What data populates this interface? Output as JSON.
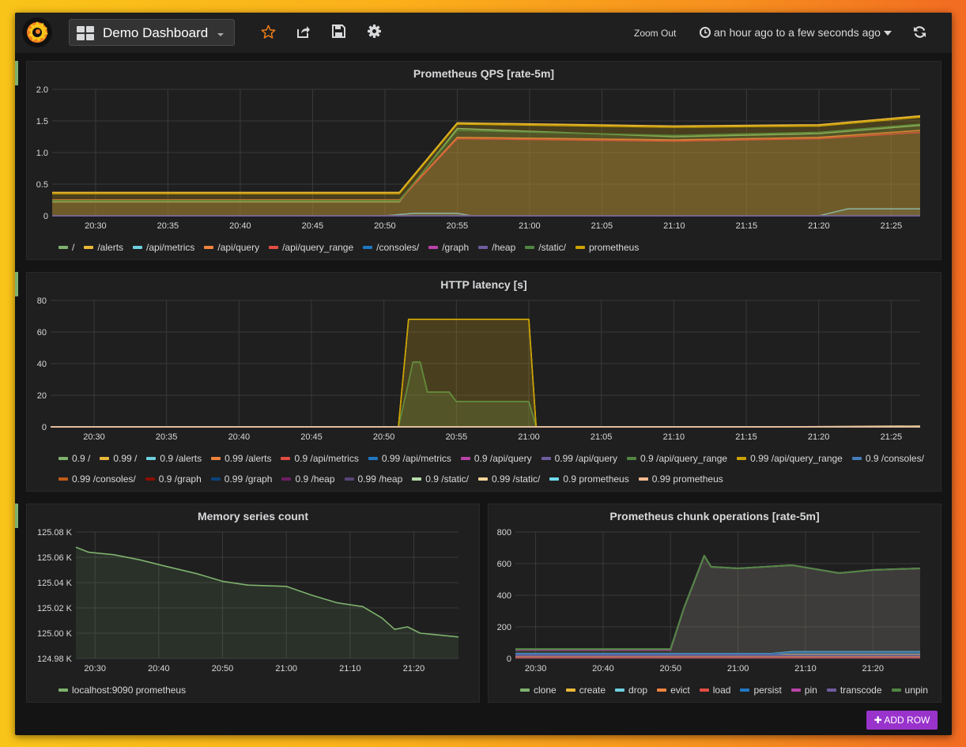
{
  "topbar": {
    "dashboard_title": "Demo Dashboard",
    "zoom_out": "Zoom Out",
    "time_range": "an hour ago to a few seconds ago",
    "add_row": "ADD ROW",
    "icons": [
      "grafana-logo-icon",
      "dashboard-grid-icon",
      "star-icon",
      "share-icon",
      "save-icon",
      "gear-icon",
      "clock-icon",
      "refresh-icon",
      "plus-icon"
    ]
  },
  "colors": {
    "accent_green": "#7eb26d",
    "add_row": "#9933cc"
  },
  "chart_data": [
    {
      "type": "area",
      "title": "Prometheus QPS [rate-5m]",
      "x_ticks": [
        "20:30",
        "20:35",
        "20:40",
        "20:45",
        "20:50",
        "20:55",
        "21:00",
        "21:05",
        "21:10",
        "21:15",
        "21:20",
        "21:25"
      ],
      "x_range": [
        "20:27",
        "21:27"
      ],
      "y_ticks": [
        "0",
        "0.5",
        "1.0",
        "1.5",
        "2.0"
      ],
      "ylim": [
        0,
        2.0
      ],
      "grid": true,
      "legend": "bottom",
      "series": [
        {
          "name": "/",
          "color": "#7eb26d",
          "x": [
            "20:27",
            "20:51",
            "20:55",
            "21:10",
            "21:20",
            "21:27"
          ],
          "values": [
            0.22,
            0.22,
            1.38,
            1.25,
            1.3,
            1.43
          ]
        },
        {
          "name": "/alerts",
          "color": "#eab839",
          "x": [
            "20:27",
            "20:51",
            "20:55",
            "21:10",
            "21:20",
            "21:27"
          ],
          "values": [
            0.37,
            0.37,
            1.47,
            1.42,
            1.44,
            1.58
          ]
        },
        {
          "name": "/api/metrics",
          "color": "#6ed0e0",
          "x": [
            "20:27",
            "20:50",
            "20:52",
            "20:55",
            "20:56",
            "21:20",
            "21:22",
            "21:27"
          ],
          "values": [
            0.0,
            0.0,
            0.04,
            0.04,
            0.0,
            0.0,
            0.11,
            0.11
          ]
        },
        {
          "name": "/api/query",
          "color": "#ef843c",
          "x": [
            "20:27",
            "20:51",
            "20:55",
            "21:10",
            "21:20",
            "21:27"
          ],
          "values": [
            0.25,
            0.25,
            1.24,
            1.2,
            1.24,
            1.35
          ]
        },
        {
          "name": "/api/query_range",
          "color": "#e24d42",
          "x": [
            "20:27",
            "20:51",
            "20:55",
            "21:10",
            "21:20",
            "21:27"
          ],
          "values": [
            0.24,
            0.24,
            1.22,
            1.18,
            1.22,
            1.32
          ]
        },
        {
          "name": "/consoles/",
          "color": "#1f78c1",
          "x": [
            "20:27",
            "21:27"
          ],
          "values": [
            0,
            0
          ]
        },
        {
          "name": "/graph",
          "color": "#ba43a9",
          "x": [
            "20:27",
            "21:27"
          ],
          "values": [
            0,
            0
          ]
        },
        {
          "name": "/heap",
          "color": "#705da0",
          "x": [
            "20:27",
            "21:27"
          ],
          "values": [
            0,
            0
          ]
        },
        {
          "name": "/static/",
          "color": "#508642",
          "x": [
            "20:27",
            "20:51",
            "20:55",
            "21:10",
            "21:20",
            "21:27"
          ],
          "values": [
            0.24,
            0.24,
            1.35,
            1.27,
            1.32,
            1.45
          ]
        },
        {
          "name": "prometheus",
          "color": "#cca300",
          "x": [
            "20:27",
            "20:51",
            "20:55",
            "21:10",
            "21:20",
            "21:27"
          ],
          "values": [
            0.35,
            0.35,
            1.45,
            1.4,
            1.42,
            1.56
          ]
        }
      ]
    },
    {
      "type": "area",
      "title": "HTTP latency [s]",
      "x_ticks": [
        "20:30",
        "20:35",
        "20:40",
        "20:45",
        "20:50",
        "20:55",
        "21:00",
        "21:05",
        "21:10",
        "21:15",
        "21:20",
        "21:25"
      ],
      "x_range": [
        "20:27",
        "21:27"
      ],
      "y_ticks": [
        "0",
        "20",
        "40",
        "60",
        "80"
      ],
      "ylim": [
        0,
        80
      ],
      "grid": true,
      "legend": "bottom",
      "series": [
        {
          "name": "0.9 /",
          "color": "#7eb26d",
          "x": [
            "20:27",
            "20:51",
            "20:51.5",
            "20:52",
            "20:52.5",
            "20:53",
            "20:54.5",
            "20:55",
            "21:00",
            "21:00.5",
            "21:27"
          ],
          "values": [
            0,
            0,
            20,
            41,
            41,
            22,
            22,
            16,
            16,
            0,
            0
          ]
        },
        {
          "name": "0.99 /",
          "color": "#eab839",
          "x": [
            "20:27",
            "20:51",
            "20:51.7",
            "21:00",
            "21:00.5",
            "21:27"
          ],
          "values": [
            0,
            0,
            68,
            68,
            0,
            0
          ]
        },
        {
          "name": "0.9 /alerts",
          "color": "#6ed0e0",
          "x": [
            "20:27",
            "21:27"
          ],
          "values": [
            0,
            0
          ]
        },
        {
          "name": "0.99 /alerts",
          "color": "#ef843c",
          "x": [
            "20:27",
            "21:27"
          ],
          "values": [
            0,
            0
          ]
        },
        {
          "name": "0.9 /api/metrics",
          "color": "#e24d42",
          "x": [
            "20:27",
            "21:27"
          ],
          "values": [
            0,
            0
          ]
        },
        {
          "name": "0.99 /api/metrics",
          "color": "#1f78c1",
          "x": [
            "20:27",
            "21:27"
          ],
          "values": [
            0,
            0
          ]
        },
        {
          "name": "0.9 /api/query",
          "color": "#ba43a9",
          "x": [
            "20:27",
            "21:27"
          ],
          "values": [
            0,
            0
          ]
        },
        {
          "name": "0.99 /api/query",
          "color": "#705da0",
          "x": [
            "20:27",
            "21:27"
          ],
          "values": [
            0,
            0
          ]
        },
        {
          "name": "0.9 /api/query_range",
          "color": "#508642",
          "x": [
            "20:27",
            "20:51",
            "20:51.5",
            "20:52",
            "20:52.5",
            "20:53",
            "20:54.5",
            "20:55",
            "21:00",
            "21:00.5",
            "21:27"
          ],
          "values": [
            0,
            0,
            20,
            41,
            41,
            22,
            22,
            16,
            16,
            0,
            0
          ]
        },
        {
          "name": "0.99 /api/query_range",
          "color": "#cca300",
          "x": [
            "20:27",
            "20:51",
            "20:51.7",
            "21:00",
            "21:00.5",
            "21:27"
          ],
          "values": [
            0,
            0,
            68,
            68,
            0,
            0
          ]
        },
        {
          "name": "0.9 /consoles/",
          "color": "#447ebc",
          "x": [
            "20:27",
            "21:27"
          ],
          "values": [
            0,
            0
          ]
        },
        {
          "name": "0.99 /consoles/",
          "color": "#c15c17",
          "x": [
            "20:27",
            "21:27"
          ],
          "values": [
            0,
            0
          ]
        },
        {
          "name": "0.9 /graph",
          "color": "#890f02",
          "x": [
            "20:27",
            "21:27"
          ],
          "values": [
            0,
            0
          ]
        },
        {
          "name": "0.99 /graph",
          "color": "#0a437c",
          "x": [
            "20:27",
            "21:27"
          ],
          "values": [
            0,
            0
          ]
        },
        {
          "name": "0.9 /heap",
          "color": "#6d1f62",
          "x": [
            "20:27",
            "21:27"
          ],
          "values": [
            0,
            0
          ]
        },
        {
          "name": "0.99 /heap",
          "color": "#584477",
          "x": [
            "20:27",
            "21:27"
          ],
          "values": [
            0,
            0
          ]
        },
        {
          "name": "0.9 /static/",
          "color": "#b7dbab",
          "x": [
            "20:27",
            "21:27"
          ],
          "values": [
            0,
            0
          ]
        },
        {
          "name": "0.99 /static/",
          "color": "#f4d598",
          "x": [
            "20:27",
            "21:17",
            "21:27"
          ],
          "values": [
            0,
            0,
            0.5
          ]
        },
        {
          "name": "0.9 prometheus",
          "color": "#70dbed",
          "x": [
            "20:27",
            "21:27"
          ],
          "values": [
            0,
            0
          ]
        },
        {
          "name": "0.99 prometheus",
          "color": "#f9ba8f",
          "x": [
            "20:27",
            "21:27"
          ],
          "values": [
            0,
            0
          ]
        }
      ]
    },
    {
      "type": "area",
      "title": "Memory series count",
      "x_ticks": [
        "20:30",
        "20:40",
        "20:50",
        "21:00",
        "21:10",
        "21:20"
      ],
      "x_range": [
        "20:27",
        "21:27"
      ],
      "y_ticks": [
        "124.98 K",
        "125.00 K",
        "125.02 K",
        "125.04 K",
        "125.06 K",
        "125.08 K"
      ],
      "ylim": [
        124.98,
        125.08
      ],
      "y_unit": "K",
      "grid": true,
      "legend": "bottom",
      "series": [
        {
          "name": "localhost:9090 prometheus",
          "color": "#7eb26d",
          "x": [
            "20:27",
            "20:29",
            "20:33",
            "20:37",
            "20:41",
            "20:46",
            "20:50",
            "20:54",
            "21:00",
            "21:04",
            "21:08",
            "21:12",
            "21:15",
            "21:17",
            "21:19",
            "21:21",
            "21:23",
            "21:27"
          ],
          "values": [
            125.068,
            125.064,
            125.062,
            125.058,
            125.053,
            125.047,
            125.041,
            125.038,
            125.037,
            125.03,
            125.024,
            125.021,
            125.012,
            125.003,
            125.005,
            125.0,
            124.999,
            124.997
          ]
        }
      ]
    },
    {
      "type": "area",
      "title": "Prometheus chunk operations [rate-5m]",
      "x_ticks": [
        "20:30",
        "20:40",
        "20:50",
        "21:00",
        "21:10",
        "21:20"
      ],
      "x_range": [
        "20:27",
        "21:27"
      ],
      "y_ticks": [
        "0",
        "200",
        "400",
        "600",
        "800"
      ],
      "ylim": [
        0,
        800
      ],
      "grid": true,
      "legend": "bottom",
      "series": [
        {
          "name": "clone",
          "color": "#7eb26d",
          "x": [
            "20:27",
            "20:50",
            "20:52",
            "20:55",
            "20:56",
            "21:00",
            "21:08",
            "21:15",
            "21:20",
            "21:27"
          ],
          "values": [
            60,
            60,
            320,
            650,
            580,
            570,
            590,
            540,
            560,
            570
          ]
        },
        {
          "name": "create",
          "color": "#eab839",
          "x": [
            "20:27",
            "21:27"
          ],
          "values": [
            25,
            25
          ]
        },
        {
          "name": "drop",
          "color": "#6ed0e0",
          "x": [
            "20:27",
            "21:05",
            "21:08",
            "21:27"
          ],
          "values": [
            30,
            30,
            42,
            42
          ]
        },
        {
          "name": "evict",
          "color": "#ef843c",
          "x": [
            "20:27",
            "21:27"
          ],
          "values": [
            10,
            10
          ]
        },
        {
          "name": "load",
          "color": "#e24d42",
          "x": [
            "20:27",
            "21:27"
          ],
          "values": [
            5,
            5
          ]
        },
        {
          "name": "persist",
          "color": "#1f78c1",
          "x": [
            "20:27",
            "21:05",
            "21:08",
            "21:27"
          ],
          "values": [
            28,
            28,
            38,
            38
          ]
        },
        {
          "name": "pin",
          "color": "#ba43a9",
          "x": [
            "20:27",
            "20:50",
            "20:52",
            "20:55",
            "20:56",
            "21:00",
            "21:08",
            "21:15",
            "21:20",
            "21:27"
          ],
          "values": [
            55,
            55,
            320,
            650,
            580,
            570,
            590,
            540,
            560,
            570
          ]
        },
        {
          "name": "transcode",
          "color": "#705da0",
          "x": [
            "20:27",
            "21:27"
          ],
          "values": [
            20,
            20
          ]
        },
        {
          "name": "unpin",
          "color": "#508642",
          "x": [
            "20:27",
            "20:50",
            "20:52",
            "20:55",
            "20:56",
            "21:00",
            "21:08",
            "21:15",
            "21:20",
            "21:27"
          ],
          "values": [
            60,
            60,
            320,
            650,
            580,
            570,
            590,
            540,
            560,
            570
          ]
        }
      ]
    }
  ]
}
